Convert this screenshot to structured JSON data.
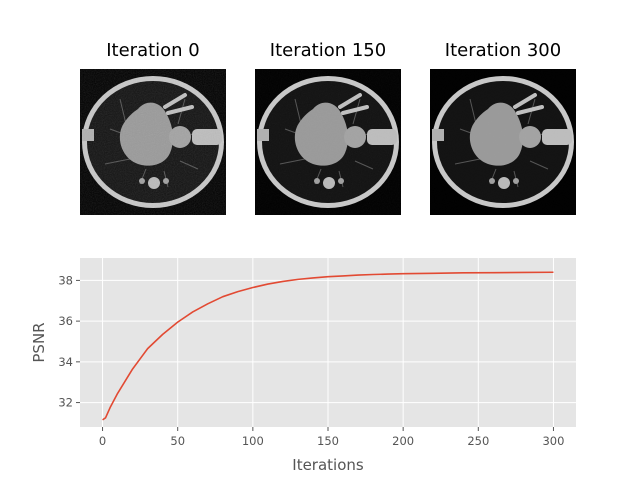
{
  "panels": [
    {
      "title": "Iteration 0",
      "noise": 0.16
    },
    {
      "title": "Iteration 150",
      "noise": 0.05
    },
    {
      "title": "Iteration 300",
      "noise": 0.02
    }
  ],
  "chart_data": {
    "type": "line",
    "title": "",
    "xlabel": "Iterations",
    "ylabel": "PSNR",
    "xlim": [
      -15,
      315
    ],
    "ylim": [
      30.8,
      39.1
    ],
    "xticks": [
      0,
      50,
      100,
      150,
      200,
      250,
      300
    ],
    "yticks": [
      32,
      34,
      36,
      38
    ],
    "grid": true,
    "style": "ggplot",
    "line_color": "#E24A33",
    "series": [
      {
        "x": [
          0,
          2,
          5,
          10,
          15,
          20,
          25,
          30,
          40,
          50,
          60,
          70,
          80,
          90,
          100,
          110,
          120,
          130,
          140,
          150,
          160,
          170,
          180,
          190,
          200,
          220,
          240,
          260,
          280,
          300
        ],
        "y": [
          31.15,
          31.25,
          31.75,
          32.45,
          33.05,
          33.65,
          34.15,
          34.65,
          35.35,
          35.95,
          36.45,
          36.85,
          37.2,
          37.45,
          37.65,
          37.82,
          37.95,
          38.05,
          38.12,
          38.18,
          38.22,
          38.26,
          38.29,
          38.31,
          38.33,
          38.35,
          38.37,
          38.38,
          38.39,
          38.4
        ]
      }
    ]
  }
}
